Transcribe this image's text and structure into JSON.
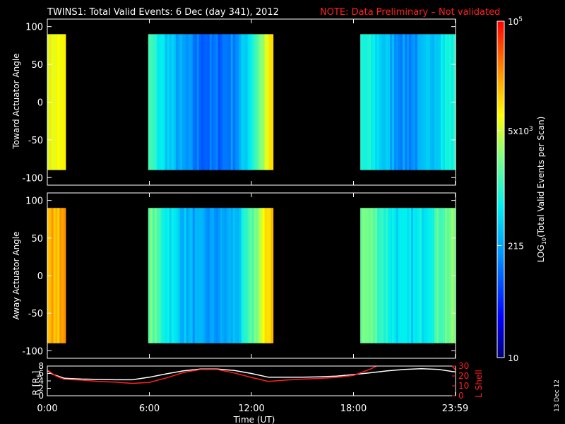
{
  "title": {
    "main": "TWINS1: Total Valid Events:  6 Dec (day 341), 2012",
    "note": "NOTE: Data Preliminary – Not validated"
  },
  "colors": {
    "note": "#ff2020",
    "background": "#000000",
    "axes": "#ffffff",
    "lshell": "#ff2020",
    "r_line": "#ffffff"
  },
  "side_date": "13 Dec 12",
  "chart_data": [
    {
      "type": "heatmap",
      "name": "toward",
      "ylabel": "Toward Actuator Angle",
      "ylim": [
        -110,
        110
      ],
      "yticks": [
        100,
        50,
        0,
        -50,
        -100
      ],
      "xlim": [
        0,
        24
      ],
      "data_yrange": [
        -90,
        90
      ],
      "blocks": [
        {
          "t_start": 0.0,
          "t_end": 1.07,
          "log_value": 3.85
        },
        {
          "t_start": 5.93,
          "t_end": 13.27,
          "log_value": 2.2
        },
        {
          "t_start": 18.4,
          "t_end": 24.0,
          "log_value": 2.55
        }
      ]
    },
    {
      "type": "heatmap",
      "name": "away",
      "ylabel": "Away Actuator Angle",
      "ylim": [
        -110,
        110
      ],
      "yticks": [
        100,
        50,
        0,
        -50,
        -100
      ],
      "xlim": [
        0,
        24
      ],
      "data_yrange": [
        -90,
        90
      ],
      "blocks": [
        {
          "t_start": 0.0,
          "t_end": 1.07,
          "log_value": 4.25
        },
        {
          "t_start": 5.93,
          "t_end": 13.27,
          "log_value": 2.45
        },
        {
          "t_start": 18.4,
          "t_end": 24.0,
          "log_value": 3.0
        }
      ]
    },
    {
      "type": "line",
      "name": "orbit",
      "ylabel_left": "R [R",
      "ylabel_left_sub": "E",
      "ylabel_left_end": "]",
      "ylabel_right": "L Shell",
      "ylim_left": [
        0,
        8
      ],
      "ylim_right": [
        0,
        30
      ],
      "yticks_left": [
        0,
        2,
        4,
        6,
        8
      ],
      "yticks_right": [
        0,
        10,
        20,
        30
      ],
      "xlim": [
        0,
        24
      ],
      "xlabel": "Time (UT)",
      "xtick_labels": [
        "0:00",
        "6:00",
        "12:00",
        "18:00",
        "23:59"
      ],
      "xtick_values": [
        0,
        6,
        12,
        18,
        23.98
      ],
      "series": [
        {
          "name": "R",
          "x": [
            0,
            0.3,
            1,
            2,
            3,
            4,
            5,
            6,
            7,
            8,
            9,
            10,
            11,
            12,
            13,
            14,
            15,
            16,
            17,
            18,
            19,
            20,
            21,
            22,
            23,
            24
          ],
          "y": [
            6.8,
            5.8,
            4.7,
            4.5,
            4.4,
            4.3,
            4.3,
            5.0,
            5.9,
            6.7,
            7.2,
            7.2,
            6.8,
            6.0,
            5.0,
            5.0,
            5.0,
            5.1,
            5.3,
            5.7,
            6.2,
            6.7,
            7.1,
            7.3,
            7.1,
            6.4
          ]
        },
        {
          "name": "L Shell",
          "x": [
            0,
            0.5,
            1,
            2,
            3,
            4,
            5,
            6,
            7,
            8,
            9,
            10,
            11,
            12,
            13,
            14,
            15,
            16,
            17,
            18,
            19,
            19.6,
            23.7,
            24
          ],
          "y": [
            26,
            20,
            16.5,
            15.8,
            14.5,
            13.7,
            12.5,
            13.5,
            18,
            23.5,
            26.5,
            26.5,
            23,
            18.5,
            14.5,
            15.8,
            16.8,
            17.5,
            18.5,
            20.5,
            27,
            32,
            32,
            26
          ]
        }
      ]
    }
  ],
  "colorbar": {
    "label_main": "LOG",
    "label_sub": "10",
    "label_rest": "(Total Valid Events per Scan)",
    "log_range": [
      1.0,
      5.0
    ],
    "ticks": [
      {
        "log": 5.0,
        "base": "10",
        "exp": "5"
      },
      {
        "log": 3.699,
        "base": "5x10",
        "exp": "3"
      },
      {
        "log": 2.332,
        "base": "215",
        "exp": ""
      },
      {
        "log": 1.0,
        "base": "10",
        "exp": ""
      }
    ]
  }
}
